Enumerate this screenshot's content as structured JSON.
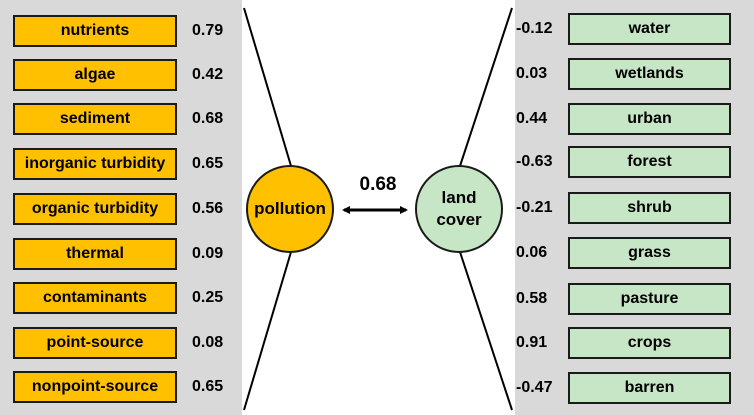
{
  "left_group": {
    "label": "pollution",
    "color": "#ffc000",
    "items": [
      {
        "name": "nutrients",
        "value": "0.79"
      },
      {
        "name": "algae",
        "value": "0.42"
      },
      {
        "name": "sediment",
        "value": "0.68"
      },
      {
        "name": "inorganic turbidity",
        "value": "0.65"
      },
      {
        "name": "organic turbidity",
        "value": "0.56"
      },
      {
        "name": "thermal",
        "value": "0.09"
      },
      {
        "name": "contaminants",
        "value": "0.25"
      },
      {
        "name": "point-source",
        "value": "0.08"
      },
      {
        "name": "nonpoint-source",
        "value": "0.65"
      }
    ]
  },
  "right_group": {
    "label_line1": "land",
    "label_line2": "cover",
    "color": "#c6e6c6",
    "items": [
      {
        "name": "water",
        "value": "-0.12"
      },
      {
        "name": "wetlands",
        "value": "0.03"
      },
      {
        "name": "urban",
        "value": "0.44"
      },
      {
        "name": "forest",
        "value": "-0.63"
      },
      {
        "name": "shrub",
        "value": "-0.21"
      },
      {
        "name": "grass",
        "value": "0.06"
      },
      {
        "name": "pasture",
        "value": "0.58"
      },
      {
        "name": "crops",
        "value": "0.91"
      },
      {
        "name": "barren",
        "value": "-0.47"
      }
    ]
  },
  "correlation": "0.68"
}
